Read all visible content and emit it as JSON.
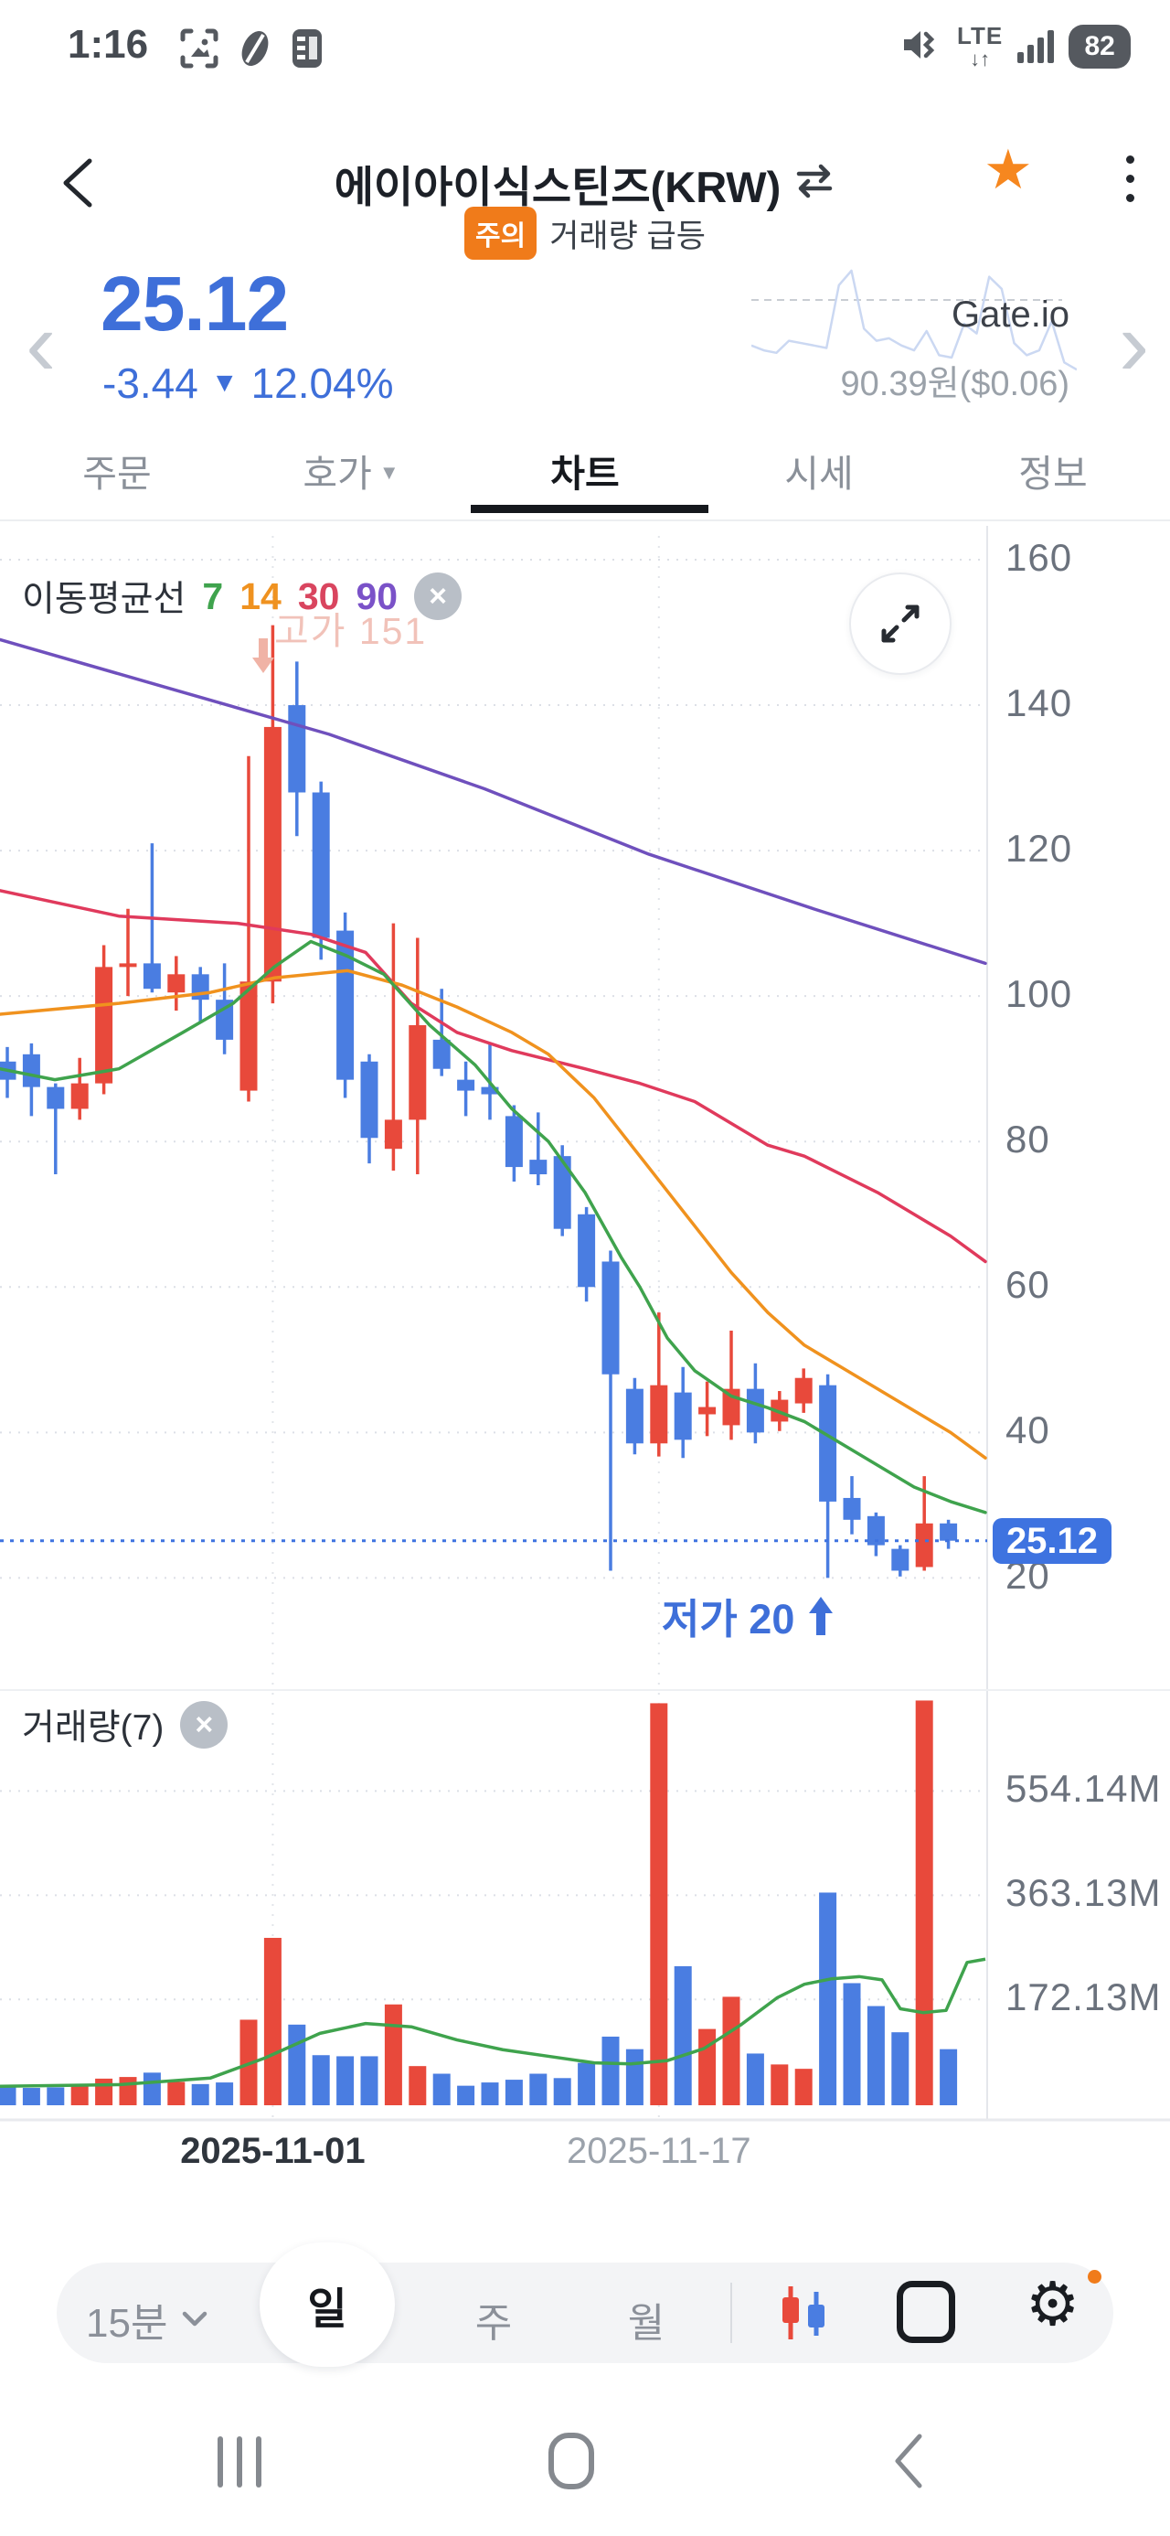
{
  "status_bar": {
    "time": "1:16",
    "network": "LTE",
    "battery": "82"
  },
  "header": {
    "title": "에이아이식스틴즈(KRW)",
    "badge": "주의",
    "badge_text": "거래량 급등"
  },
  "price_section": {
    "price": "25.12",
    "change": "-3.44",
    "change_pct": "12.04%",
    "direction": "down",
    "exchange": "Gate.io",
    "converted": "90.39원($0.06)",
    "sparkline": [
      38,
      34,
      32,
      42,
      40,
      38,
      36,
      88,
      100,
      52,
      42,
      44,
      38,
      34,
      50,
      30,
      28,
      56,
      48,
      95,
      85,
      40,
      30,
      34,
      58,
      24,
      18
    ]
  },
  "tabs": {
    "items": [
      {
        "label": "주문"
      },
      {
        "label": "호가",
        "has_dropdown": true
      },
      {
        "label": "차트",
        "active": true
      },
      {
        "label": "시세"
      },
      {
        "label": "정보"
      }
    ]
  },
  "chart": {
    "legend": {
      "title": "이동평균선",
      "periods": [
        {
          "label": "7",
          "color": "#3fa34d"
        },
        {
          "label": "14",
          "color": "#ef9220"
        },
        {
          "label": "30",
          "color": "#d9455f"
        },
        {
          "label": "90",
          "color": "#7a52c8"
        }
      ]
    },
    "high_marker": "고가 151",
    "low_marker": "저가 20",
    "price_tag": "25.12",
    "volume_legend": "거래량(7)"
  },
  "chart_data": {
    "type": "candlestick",
    "current_price": 25.12,
    "price_axis": {
      "ticks": [
        160,
        140,
        120,
        100,
        80,
        60,
        40,
        20
      ]
    },
    "volume_axis": {
      "ticks": [
        {
          "value": 554.14,
          "label": "554.14M"
        },
        {
          "value": 363.13,
          "label": "363.13M"
        },
        {
          "value": 172.13,
          "label": "172.13M"
        }
      ]
    },
    "x_ticks": [
      {
        "index": 11,
        "label": "2025-11-01",
        "emphasis": true
      },
      {
        "index": 27,
        "label": "2025-11-17",
        "emphasis": false
      }
    ],
    "high_annotation": {
      "index": 11,
      "price": 151
    },
    "low_annotation": {
      "index": 34,
      "price": 20
    },
    "candles": [
      [
        91,
        93,
        86,
        88.5,
        12
      ],
      [
        92,
        93.5,
        83.5,
        87.5,
        10
      ],
      [
        87.5,
        88,
        75.5,
        84.5,
        11
      ],
      [
        84.5,
        91.5,
        83,
        88,
        16
      ],
      [
        88,
        107,
        86.5,
        104,
        27
      ],
      [
        104,
        112,
        100,
        104.5,
        30
      ],
      [
        104.5,
        121,
        100.5,
        101,
        38
      ],
      [
        100.5,
        105.5,
        98,
        103,
        21
      ],
      [
        103,
        104,
        96.5,
        99.5,
        17
      ],
      [
        99.5,
        104.5,
        92,
        94,
        20
      ],
      [
        87,
        133,
        85.5,
        102,
        135
      ],
      [
        102,
        151,
        99,
        137,
        285
      ],
      [
        140,
        146,
        122,
        128,
        126
      ],
      [
        128,
        129.5,
        105,
        108,
        70
      ],
      [
        109,
        111.5,
        86,
        88.5,
        68
      ],
      [
        91,
        92,
        77,
        80.5,
        68
      ],
      [
        79,
        110,
        76,
        83,
        163
      ],
      [
        83,
        108,
        75.5,
        96,
        50
      ],
      [
        94,
        101,
        89,
        90,
        36
      ],
      [
        88.5,
        91,
        83.5,
        87,
        14
      ],
      [
        87.5,
        93.5,
        83,
        86.5,
        20
      ],
      [
        83.5,
        85,
        74.5,
        76.5,
        25
      ],
      [
        77.5,
        84,
        74,
        75.5,
        36
      ],
      [
        78,
        79.5,
        67,
        68,
        28
      ],
      [
        70,
        71,
        58,
        60,
        56
      ],
      [
        63.5,
        65,
        21,
        48,
        104
      ],
      [
        46,
        47.5,
        37,
        38.5,
        81
      ],
      [
        38.5,
        56.5,
        36.7,
        46.5,
        715
      ],
      [
        45.5,
        49,
        36.5,
        39,
        233
      ],
      [
        42.5,
        47,
        39.5,
        43.5,
        118
      ],
      [
        41,
        54,
        39,
        46,
        177
      ],
      [
        46,
        49.5,
        38.5,
        40,
        73
      ],
      [
        41.5,
        45.7,
        40.2,
        44.5,
        53
      ],
      [
        44,
        48.8,
        42.7,
        47.5,
        45
      ],
      [
        46.5,
        48,
        20,
        30.5,
        368
      ],
      [
        31,
        34,
        26,
        28,
        202
      ],
      [
        28.5,
        29,
        23,
        24.5,
        160
      ],
      [
        24,
        24.5,
        20.2,
        21,
        112
      ],
      [
        21.5,
        34,
        21,
        27.5,
        720
      ],
      [
        27.5,
        28,
        24,
        25.12,
        81
      ]
    ],
    "ma_lines": [
      {
        "period": 90,
        "color": "#6f50bd",
        "points": [
          [
            0,
            149
          ],
          [
            180,
            142.5
          ],
          [
            360,
            136
          ],
          [
            530,
            128.5
          ],
          [
            710,
            119.5
          ],
          [
            890,
            112
          ],
          [
            1078,
            104.5
          ]
        ]
      },
      {
        "period": 30,
        "color": "#e03a5c",
        "points": [
          [
            0,
            114.5
          ],
          [
            130,
            111
          ],
          [
            260,
            110
          ],
          [
            340,
            108.5
          ],
          [
            400,
            106
          ],
          [
            450,
            99
          ],
          [
            500,
            95
          ],
          [
            560,
            92.5
          ],
          [
            640,
            90
          ],
          [
            700,
            88
          ],
          [
            760,
            85.5
          ],
          [
            800,
            82.5
          ],
          [
            840,
            79.5
          ],
          [
            880,
            78
          ],
          [
            920,
            75.5
          ],
          [
            960,
            73
          ],
          [
            1000,
            70
          ],
          [
            1040,
            67
          ],
          [
            1078,
            63.5
          ]
        ]
      },
      {
        "period": 14,
        "color": "#f0921e",
        "points": [
          [
            0,
            97.5
          ],
          [
            130,
            99
          ],
          [
            230,
            100.5
          ],
          [
            300,
            102.5
          ],
          [
            380,
            103.5
          ],
          [
            440,
            101.5
          ],
          [
            500,
            98.5
          ],
          [
            560,
            95
          ],
          [
            600,
            92
          ],
          [
            650,
            86
          ],
          [
            700,
            78
          ],
          [
            750,
            70
          ],
          [
            800,
            62
          ],
          [
            840,
            56.5
          ],
          [
            880,
            52
          ],
          [
            920,
            49
          ],
          [
            960,
            46
          ],
          [
            1000,
            43
          ],
          [
            1040,
            40
          ],
          [
            1078,
            36.5
          ]
        ]
      },
      {
        "period": 7,
        "color": "#3fa34d",
        "points": [
          [
            0,
            90
          ],
          [
            60,
            88.5
          ],
          [
            130,
            90
          ],
          [
            200,
            95
          ],
          [
            255,
            99
          ],
          [
            300,
            104
          ],
          [
            340,
            107.5
          ],
          [
            380,
            105.5
          ],
          [
            420,
            103
          ],
          [
            470,
            96
          ],
          [
            520,
            90.5
          ],
          [
            560,
            84.5
          ],
          [
            600,
            80
          ],
          [
            640,
            73
          ],
          [
            680,
            64
          ],
          [
            700,
            60
          ],
          [
            730,
            53
          ],
          [
            760,
            48.5
          ],
          [
            800,
            45
          ],
          [
            840,
            43.4
          ],
          [
            880,
            41.5
          ],
          [
            920,
            38.5
          ],
          [
            960,
            35.5
          ],
          [
            1000,
            32.5
          ],
          [
            1040,
            30.5
          ],
          [
            1078,
            29
          ]
        ]
      }
    ],
    "volume_ma": {
      "period": 7,
      "color": "#3fa34d",
      "points": [
        [
          0,
          13
        ],
        [
          130,
          16
        ],
        [
          230,
          28
        ],
        [
          290,
          65
        ],
        [
          350,
          110
        ],
        [
          400,
          128
        ],
        [
          450,
          122
        ],
        [
          500,
          98
        ],
        [
          550,
          80
        ],
        [
          600,
          68
        ],
        [
          650,
          56
        ],
        [
          690,
          54
        ],
        [
          730,
          60
        ],
        [
          770,
          82
        ],
        [
          810,
          125
        ],
        [
          850,
          175
        ],
        [
          880,
          200
        ],
        [
          910,
          210
        ],
        [
          940,
          214
        ],
        [
          965,
          208
        ],
        [
          985,
          155
        ],
        [
          1010,
          148
        ],
        [
          1035,
          152
        ],
        [
          1058,
          240
        ],
        [
          1078,
          246
        ]
      ]
    },
    "volume_unit": "M"
  },
  "toolbar": {
    "interval": "15분",
    "day": "일",
    "week": "주",
    "month": "월"
  },
  "colors": {
    "up": "#e8493b",
    "down": "#4a7de1",
    "accent": "#3e6fd9",
    "tag": "#3e73e0",
    "grid": "#dcdfe6",
    "axis_text": "#6b727d",
    "badge": "#f07b1a",
    "star": "#f6871f"
  }
}
